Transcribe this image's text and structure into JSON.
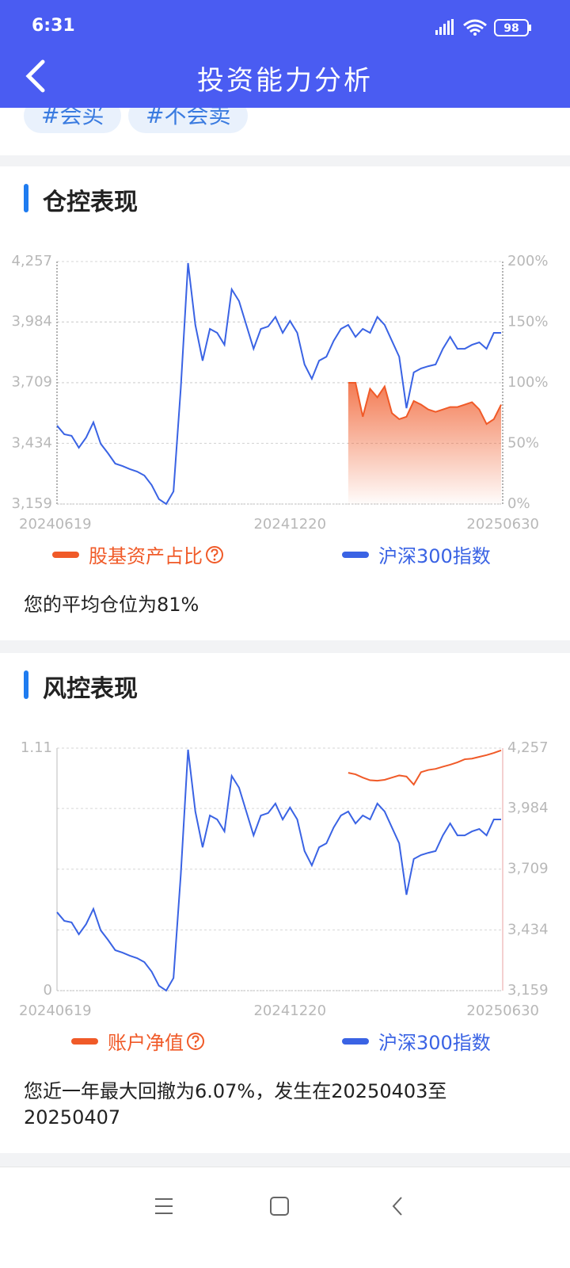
{
  "status_bar": {
    "time": "6:31",
    "battery": "98"
  },
  "header": {
    "title": "投资能力分析"
  },
  "tags": [
    "#会买",
    "#不会卖"
  ],
  "sections": [
    {
      "title": "仓控表现",
      "note": "您的平均仓位为81%"
    },
    {
      "title": "风控表现",
      "note": "您近一年最大回撤为6.07%，发生在20250403至20250407"
    }
  ],
  "chart_data": [
    {
      "type": "line",
      "categories": [
        "20240619",
        null,
        null,
        null,
        null,
        null,
        null,
        null,
        null,
        null,
        null,
        null,
        null,
        null,
        null,
        null,
        null,
        null,
        null,
        null,
        null,
        null,
        null,
        null,
        null,
        null,
        null,
        null,
        null,
        null,
        null,
        null,
        "20241220",
        null,
        null,
        null,
        null,
        null,
        null,
        null,
        null,
        null,
        null,
        null,
        null,
        null,
        null,
        null,
        null,
        null,
        null,
        null,
        null,
        null,
        null,
        null,
        null,
        null,
        null,
        null,
        null,
        "20250630"
      ],
      "series": [
        {
          "name": "股基资产占比",
          "color": "#f05a28",
          "axis": "y2",
          "area": true,
          "values": [
            null,
            null,
            null,
            null,
            null,
            null,
            null,
            null,
            null,
            null,
            null,
            null,
            null,
            null,
            null,
            null,
            null,
            null,
            null,
            null,
            null,
            null,
            null,
            null,
            null,
            null,
            null,
            null,
            null,
            null,
            null,
            null,
            null,
            null,
            null,
            null,
            null,
            null,
            null,
            null,
            100,
            100,
            72,
            95,
            88,
            97,
            75,
            70,
            72,
            85,
            82,
            78,
            76,
            78,
            80,
            80,
            82,
            84,
            78,
            66,
            70,
            82
          ]
        },
        {
          "name": "沪深300指数",
          "color": "#3a63e4",
          "values": [
            3514,
            3475,
            3468,
            3414,
            3460,
            3529,
            3432,
            3389,
            3342,
            3331,
            3317,
            3306,
            3288,
            3245,
            3181,
            3159,
            3216,
            3683,
            4250,
            3970,
            3808,
            3952,
            3934,
            3880,
            4131,
            4078,
            3970,
            3862,
            3952,
            3963,
            4006,
            3934,
            3988,
            3934,
            3791,
            3726,
            3808,
            3826,
            3898,
            3952,
            3970,
            3916,
            3952,
            3934,
            4006,
            3970,
            3898,
            3826,
            3593,
            3755,
            3773,
            3783,
            3791,
            3862,
            3916,
            3862,
            3862,
            3880,
            3891,
            3862,
            3934,
            3934
          ]
        }
      ],
      "ylim": [
        3159,
        4257
      ],
      "yticks": [
        {
          "value": 3159,
          "label": "3,159"
        },
        {
          "value": 3434,
          "label": "3,434"
        },
        {
          "value": 3709,
          "label": "3,709"
        },
        {
          "value": 3984,
          "label": "3,984"
        },
        {
          "value": 4257,
          "label": "4,257"
        }
      ],
      "y2lim": [
        0,
        200
      ],
      "y2ticks": [
        {
          "value": 0,
          "label": "0%"
        },
        {
          "value": 50,
          "label": "50%"
        },
        {
          "value": 100,
          "label": "100%"
        },
        {
          "value": 150,
          "label": "150%"
        },
        {
          "value": 200,
          "label": "200%"
        }
      ],
      "grid": true
    },
    {
      "type": "line",
      "categories": [
        "20240619",
        null,
        null,
        null,
        null,
        null,
        null,
        null,
        null,
        null,
        null,
        null,
        null,
        null,
        null,
        null,
        null,
        null,
        null,
        null,
        null,
        null,
        null,
        null,
        null,
        null,
        null,
        null,
        null,
        null,
        null,
        null,
        "20241220",
        null,
        null,
        null,
        null,
        null,
        null,
        null,
        null,
        null,
        null,
        null,
        null,
        null,
        null,
        null,
        null,
        null,
        null,
        null,
        null,
        null,
        null,
        null,
        null,
        null,
        null,
        null,
        null,
        "20250630"
      ],
      "series": [
        {
          "name": "账户净值",
          "color": "#f05a28",
          "values": [
            null,
            null,
            null,
            null,
            null,
            null,
            null,
            null,
            null,
            null,
            null,
            null,
            null,
            null,
            null,
            null,
            null,
            null,
            null,
            null,
            null,
            null,
            null,
            null,
            null,
            null,
            null,
            null,
            null,
            null,
            null,
            null,
            null,
            null,
            null,
            null,
            null,
            null,
            null,
            null,
            0.997,
            0.99,
            0.975,
            0.963,
            0.961,
            0.965,
            0.975,
            0.985,
            0.98,
            0.943,
            1.0,
            1.01,
            1.015,
            1.025,
            1.034,
            1.045,
            1.059,
            1.062,
            1.07,
            1.078,
            1.088,
            1.1
          ]
        },
        {
          "name": "沪深300指数",
          "color": "#3a63e4",
          "axis": "y2",
          "values": [
            3514,
            3475,
            3468,
            3414,
            3460,
            3529,
            3432,
            3389,
            3342,
            3331,
            3317,
            3306,
            3288,
            3245,
            3181,
            3159,
            3216,
            3683,
            4250,
            3970,
            3808,
            3952,
            3934,
            3880,
            4131,
            4078,
            3970,
            3862,
            3952,
            3963,
            4006,
            3934,
            3988,
            3934,
            3791,
            3726,
            3808,
            3826,
            3898,
            3952,
            3970,
            3916,
            3952,
            3934,
            4006,
            3970,
            3898,
            3826,
            3593,
            3755,
            3773,
            3783,
            3791,
            3862,
            3916,
            3862,
            3862,
            3880,
            3891,
            3862,
            3934,
            3934
          ]
        }
      ],
      "ylim": [
        0,
        1.11
      ],
      "yticks": [
        0,
        1.11
      ],
      "y2lim": [
        3159,
        4257
      ],
      "y2ticks": [
        {
          "value": 3159,
          "label": "3,159"
        },
        {
          "value": 3434,
          "label": "3,434"
        },
        {
          "value": 3709,
          "label": "3,709"
        },
        {
          "value": 3984,
          "label": "3,984"
        },
        {
          "value": 4257,
          "label": "4,257"
        }
      ],
      "grid": true
    }
  ]
}
